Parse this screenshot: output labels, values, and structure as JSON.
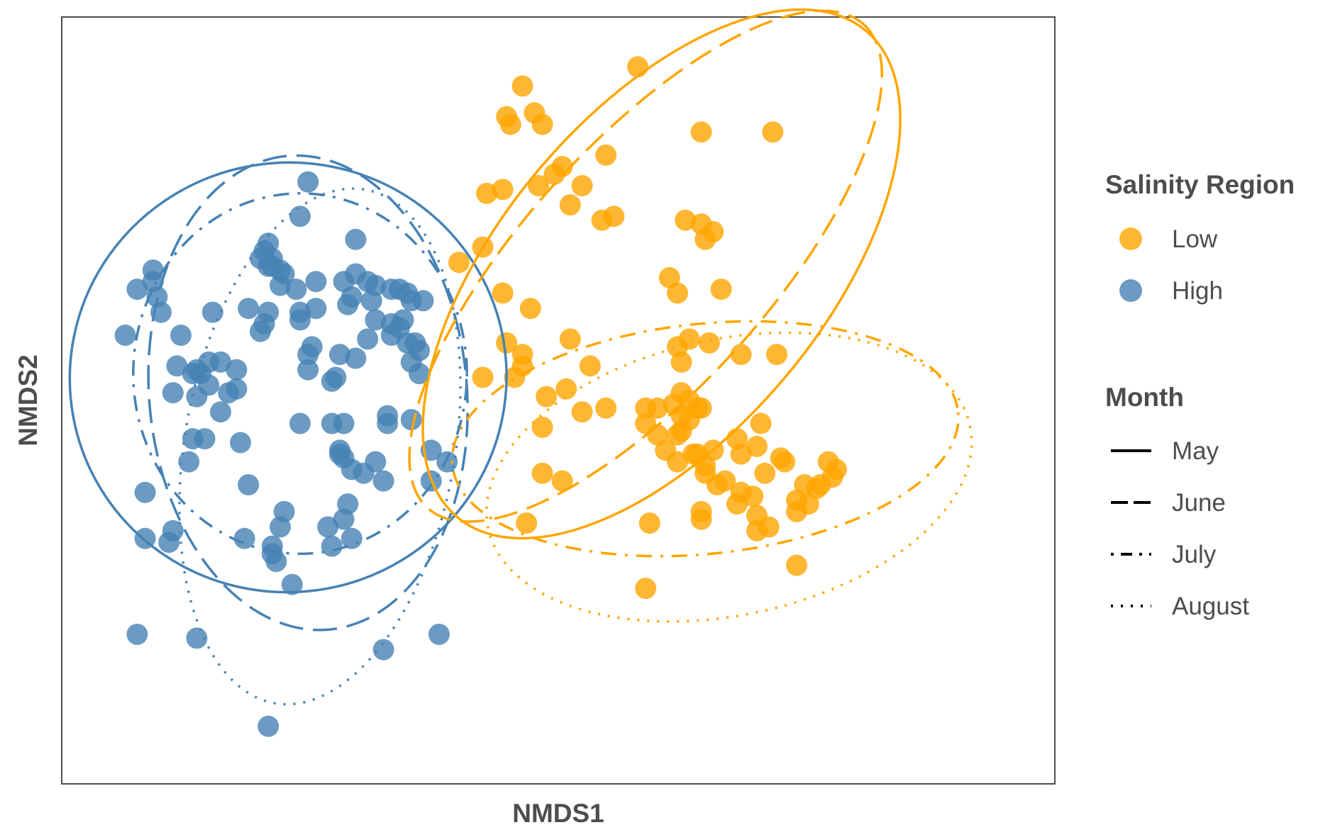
{
  "chart_data": {
    "type": "scatter",
    "title": "",
    "xlabel": "NMDS1",
    "ylabel": "NMDS2",
    "xlim": [
      -1.0,
      1.5
    ],
    "ylim": [
      -1.0,
      1.0
    ],
    "grid": false,
    "legend": {
      "color_title": "Salinity Region",
      "linetype_title": "Month",
      "placement": "right",
      "color_entries": [
        {
          "label": "Low",
          "color": "#FFA500"
        },
        {
          "label": "High",
          "color": "#4682B4"
        }
      ],
      "linetype_entries": [
        {
          "label": "May",
          "dash": "solid"
        },
        {
          "label": "June",
          "dash": "longdash"
        },
        {
          "label": "July",
          "dash": "dotdash"
        },
        {
          "label": "August",
          "dash": "dotted"
        }
      ]
    },
    "series": [
      {
        "name": "Low",
        "color": "#FFA500",
        "points": [
          [
            0.45,
            0.87
          ],
          [
            0.16,
            0.82
          ],
          [
            0.12,
            0.74
          ],
          [
            0.19,
            0.75
          ],
          [
            0.13,
            0.72
          ],
          [
            0.21,
            0.72
          ],
          [
            0.79,
            0.7
          ],
          [
            0.61,
            0.7
          ],
          [
            0.2,
            0.56
          ],
          [
            0.24,
            0.59
          ],
          [
            0.26,
            0.61
          ],
          [
            0.31,
            0.56
          ],
          [
            0.37,
            0.64
          ],
          [
            0.07,
            0.54
          ],
          [
            0.11,
            0.55
          ],
          [
            0.28,
            0.51
          ],
          [
            0.39,
            0.48
          ],
          [
            0.36,
            0.47
          ],
          [
            0.57,
            0.47
          ],
          [
            0.61,
            0.46
          ],
          [
            0.62,
            0.42
          ],
          [
            0.64,
            0.44
          ],
          [
            0.06,
            0.4
          ],
          [
            -0.0,
            0.36
          ],
          [
            0.11,
            0.28
          ],
          [
            0.53,
            0.32
          ],
          [
            0.55,
            0.28
          ],
          [
            0.66,
            0.29
          ],
          [
            0.18,
            0.24
          ],
          [
            0.28,
            0.16
          ],
          [
            0.58,
            0.16
          ],
          [
            0.63,
            0.15
          ],
          [
            0.71,
            0.12
          ],
          [
            0.8,
            0.12
          ],
          [
            0.55,
            0.14
          ],
          [
            0.12,
            0.15
          ],
          [
            0.16,
            0.12
          ],
          [
            0.16,
            0.09
          ],
          [
            0.33,
            0.09
          ],
          [
            0.56,
            0.1
          ],
          [
            0.06,
            0.06
          ],
          [
            0.14,
            0.06
          ],
          [
            0.27,
            0.03
          ],
          [
            0.22,
            0.01
          ],
          [
            0.56,
            0.02
          ],
          [
            0.58,
            -0.0
          ],
          [
            0.37,
            -0.02
          ],
          [
            0.31,
            -0.03
          ],
          [
            0.47,
            -0.02
          ],
          [
            0.5,
            -0.02
          ],
          [
            0.6,
            -0.02
          ],
          [
            0.61,
            -0.02
          ],
          [
            0.54,
            -0.01
          ],
          [
            0.56,
            -0.04
          ],
          [
            0.58,
            -0.05
          ],
          [
            0.76,
            -0.06
          ],
          [
            0.47,
            -0.06
          ],
          [
            0.21,
            -0.07
          ],
          [
            0.56,
            -0.08
          ],
          [
            0.55,
            -0.09
          ],
          [
            0.5,
            -0.09
          ],
          [
            0.7,
            -0.1
          ],
          [
            0.75,
            -0.12
          ],
          [
            0.64,
            -0.13
          ],
          [
            0.59,
            -0.14
          ],
          [
            0.52,
            -0.13
          ],
          [
            0.6,
            -0.14
          ],
          [
            0.81,
            -0.15
          ],
          [
            0.71,
            -0.14
          ],
          [
            0.55,
            -0.16
          ],
          [
            0.82,
            -0.16
          ],
          [
            0.77,
            -0.19
          ],
          [
            0.62,
            -0.17
          ],
          [
            0.62,
            -0.19
          ],
          [
            0.21,
            -0.19
          ],
          [
            0.93,
            -0.16
          ],
          [
            0.95,
            -0.18
          ],
          [
            0.94,
            -0.2
          ],
          [
            0.91,
            -0.22
          ],
          [
            0.26,
            -0.21
          ],
          [
            0.67,
            -0.21
          ],
          [
            0.87,
            -0.22
          ],
          [
            0.65,
            -0.22
          ],
          [
            0.9,
            -0.23
          ],
          [
            0.85,
            -0.26
          ],
          [
            0.71,
            -0.24
          ],
          [
            0.74,
            -0.25
          ],
          [
            0.7,
            -0.27
          ],
          [
            0.61,
            -0.29
          ],
          [
            0.75,
            -0.3
          ],
          [
            0.61,
            -0.31
          ],
          [
            0.78,
            -0.33
          ],
          [
            0.85,
            -0.29
          ],
          [
            0.88,
            -0.27
          ],
          [
            0.17,
            -0.32
          ],
          [
            0.48,
            -0.32
          ],
          [
            0.75,
            -0.34
          ],
          [
            0.85,
            -0.43
          ],
          [
            0.47,
            -0.49
          ]
        ]
      },
      {
        "name": "High",
        "color": "#4682B4",
        "points": [
          [
            -0.38,
            0.57
          ],
          [
            -0.4,
            0.48
          ],
          [
            -0.48,
            0.41
          ],
          [
            -0.49,
            0.39
          ],
          [
            -0.5,
            0.37
          ],
          [
            -0.47,
            0.37
          ],
          [
            -0.48,
            0.35
          ],
          [
            -0.26,
            0.42
          ],
          [
            -0.77,
            0.34
          ],
          [
            -0.77,
            0.31
          ],
          [
            -0.81,
            0.29
          ],
          [
            -0.76,
            0.27
          ],
          [
            -0.47,
            0.35
          ],
          [
            -0.45,
            0.34
          ],
          [
            -0.44,
            0.33
          ],
          [
            -0.45,
            0.3
          ],
          [
            -0.41,
            0.29
          ],
          [
            -0.36,
            0.31
          ],
          [
            -0.29,
            0.31
          ],
          [
            -0.26,
            0.33
          ],
          [
            -0.23,
            0.31
          ],
          [
            -0.21,
            0.3
          ],
          [
            -0.17,
            0.29
          ],
          [
            -0.15,
            0.29
          ],
          [
            -0.13,
            0.28
          ],
          [
            -0.12,
            0.26
          ],
          [
            -0.09,
            0.26
          ],
          [
            -0.22,
            0.26
          ],
          [
            -0.27,
            0.27
          ],
          [
            -0.28,
            0.25
          ],
          [
            -0.36,
            0.24
          ],
          [
            -0.53,
            0.24
          ],
          [
            -0.62,
            0.23
          ],
          [
            -0.48,
            0.23
          ],
          [
            -0.4,
            0.23
          ],
          [
            -0.49,
            0.2
          ],
          [
            -0.5,
            0.18
          ],
          [
            -0.75,
            0.23
          ],
          [
            -0.4,
            0.21
          ],
          [
            -0.21,
            0.21
          ],
          [
            -0.17,
            0.2
          ],
          [
            -0.14,
            0.21
          ],
          [
            -0.15,
            0.19
          ],
          [
            -0.84,
            0.17
          ],
          [
            -0.7,
            0.17
          ],
          [
            -0.23,
            0.16
          ],
          [
            -0.17,
            0.17
          ],
          [
            -0.13,
            0.15
          ],
          [
            -0.37,
            0.14
          ],
          [
            -0.38,
            0.12
          ],
          [
            -0.11,
            0.15
          ],
          [
            -0.1,
            0.13
          ],
          [
            -0.26,
            0.11
          ],
          [
            -0.3,
            0.12
          ],
          [
            -0.12,
            0.1
          ],
          [
            -0.63,
            0.1
          ],
          [
            -0.71,
            0.09
          ],
          [
            -0.65,
            0.07
          ],
          [
            -0.66,
            0.08
          ],
          [
            -0.6,
            0.1
          ],
          [
            -0.67,
            0.07
          ],
          [
            -0.56,
            0.08
          ],
          [
            -0.38,
            0.08
          ],
          [
            -0.31,
            0.06
          ],
          [
            -0.32,
            0.05
          ],
          [
            -0.1,
            0.07
          ],
          [
            -0.63,
            0.04
          ],
          [
            -0.72,
            0.02
          ],
          [
            -0.66,
            0.01
          ],
          [
            -0.56,
            0.03
          ],
          [
            -0.58,
            0.02
          ],
          [
            -0.6,
            -0.03
          ],
          [
            -0.4,
            -0.06
          ],
          [
            -0.18,
            -0.06
          ],
          [
            -0.32,
            -0.06
          ],
          [
            -0.29,
            -0.06
          ],
          [
            -0.12,
            -0.05
          ],
          [
            -0.18,
            -0.04
          ],
          [
            -0.64,
            -0.1
          ],
          [
            -0.67,
            -0.1
          ],
          [
            -0.55,
            -0.11
          ],
          [
            -0.07,
            -0.13
          ],
          [
            -0.03,
            -0.16
          ],
          [
            -0.68,
            -0.16
          ],
          [
            -0.21,
            -0.16
          ],
          [
            -0.3,
            -0.14
          ],
          [
            -0.3,
            -0.13
          ],
          [
            -0.29,
            -0.15
          ],
          [
            -0.27,
            -0.18
          ],
          [
            -0.24,
            -0.19
          ],
          [
            -0.53,
            -0.22
          ],
          [
            -0.19,
            -0.21
          ],
          [
            -0.07,
            -0.21
          ],
          [
            -0.79,
            -0.24
          ],
          [
            -0.44,
            -0.29
          ],
          [
            -0.28,
            -0.27
          ],
          [
            -0.29,
            -0.31
          ],
          [
            -0.45,
            -0.33
          ],
          [
            -0.33,
            -0.33
          ],
          [
            -0.79,
            -0.36
          ],
          [
            -0.27,
            -0.36
          ],
          [
            -0.32,
            -0.38
          ],
          [
            -0.54,
            -0.36
          ],
          [
            -0.72,
            -0.34
          ],
          [
            -0.47,
            -0.38
          ],
          [
            -0.73,
            -0.37
          ],
          [
            -0.47,
            -0.4
          ],
          [
            -0.46,
            -0.42
          ],
          [
            -0.42,
            -0.48
          ],
          [
            -0.19,
            -0.65
          ],
          [
            -0.81,
            -0.61
          ],
          [
            -0.05,
            -0.61
          ],
          [
            -0.48,
            -0.85
          ],
          [
            -0.66,
            -0.62
          ]
        ]
      }
    ],
    "ellipses": [
      {
        "group": "High",
        "month": "May",
        "color": "#4682B4",
        "dash": "solid",
        "cx": -0.43,
        "cy": 0.06,
        "rx": 0.55,
        "ry": 0.56,
        "angle_deg": -10
      },
      {
        "group": "High",
        "month": "June",
        "color": "#4682B4",
        "dash": "longdash",
        "cx": -0.38,
        "cy": 0.02,
        "rx": 0.4,
        "ry": 0.62,
        "angle_deg": -5
      },
      {
        "group": "High",
        "month": "July",
        "color": "#4682B4",
        "dash": "dotdash",
        "cx": -0.4,
        "cy": 0.07,
        "rx": 0.42,
        "ry": 0.47,
        "angle_deg": 0
      },
      {
        "group": "High",
        "month": "August",
        "color": "#4682B4",
        "dash": "dotted",
        "cx": -0.35,
        "cy": -0.12,
        "rx": 0.34,
        "ry": 0.68,
        "angle_deg": 10
      },
      {
        "group": "Low",
        "month": "May",
        "color": "#FFA500",
        "dash": "solid",
        "cx": 0.51,
        "cy": 0.33,
        "rx": 0.8,
        "ry": 0.42,
        "angle_deg": -50
      },
      {
        "group": "Low",
        "month": "June",
        "color": "#FFA500",
        "dash": "longdash",
        "cx": 0.47,
        "cy": 0.35,
        "rx": 0.82,
        "ry": 0.32,
        "angle_deg": -48
      },
      {
        "group": "Low",
        "month": "July",
        "color": "#FFA500",
        "dash": "dotdash",
        "cx": 0.62,
        "cy": -0.1,
        "rx": 0.64,
        "ry": 0.3,
        "angle_deg": -6
      },
      {
        "group": "Low",
        "month": "August",
        "color": "#FFA500",
        "dash": "dotted",
        "cx": 0.68,
        "cy": -0.2,
        "rx": 0.62,
        "ry": 0.36,
        "angle_deg": -12
      }
    ]
  }
}
